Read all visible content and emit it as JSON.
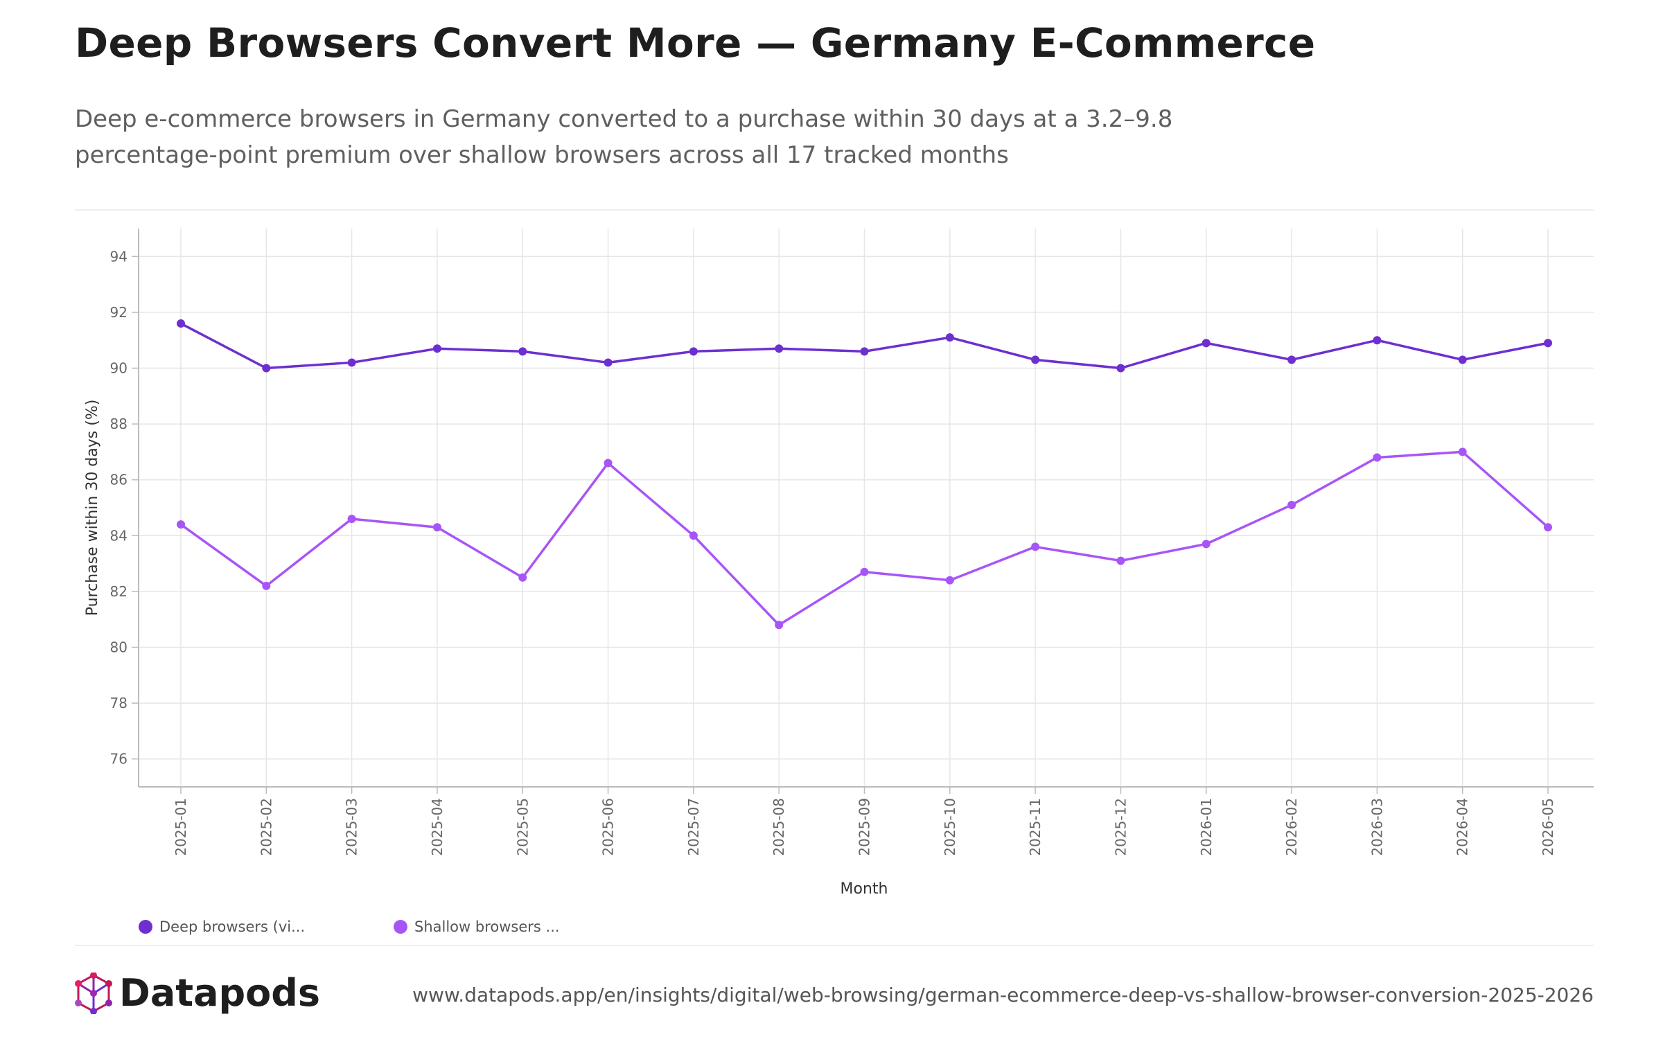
{
  "header": {
    "title": "Deep Browsers Convert More — Germany E-Commerce",
    "subtitle": "Deep e-commerce browsers in Germany converted to a purchase within 30 days at a 3.2–9.8 percentage-point premium over shallow browsers across all 17 tracked months"
  },
  "colors": {
    "deep": "#6d2fd0",
    "shallow": "#a855f7",
    "grid": "#e6e6e6",
    "axis": "#bbbbbb"
  },
  "chart_data": {
    "type": "line",
    "xlabel": "Month",
    "ylabel": "Purchase within 30 days (%)",
    "ylim": [
      75,
      95
    ],
    "yticks": [
      76,
      78,
      80,
      82,
      84,
      86,
      88,
      90,
      92,
      94
    ],
    "grid": true,
    "legend_position": "bottom-left",
    "categories": [
      "2025-01",
      "2025-02",
      "2025-03",
      "2025-04",
      "2025-05",
      "2025-06",
      "2025-07",
      "2025-08",
      "2025-09",
      "2025-10",
      "2025-11",
      "2025-12",
      "2026-01",
      "2026-02",
      "2026-03",
      "2026-04",
      "2026-05"
    ],
    "series": [
      {
        "name": "Deep browsers (vi...",
        "values": [
          91.6,
          90.0,
          90.2,
          90.7,
          90.6,
          90.2,
          90.6,
          90.7,
          90.6,
          91.1,
          90.3,
          90.0,
          90.9,
          90.3,
          91.0,
          90.3,
          90.9
        ]
      },
      {
        "name": "Shallow browsers ...",
        "values": [
          84.4,
          82.2,
          84.6,
          84.3,
          82.5,
          86.6,
          84.0,
          80.8,
          82.7,
          82.4,
          83.6,
          83.1,
          83.7,
          85.1,
          86.8,
          87.0,
          84.3
        ]
      }
    ]
  },
  "legend": {
    "deep_label": "Deep browsers (vi...",
    "shallow_label": "Shallow browsers ..."
  },
  "footer": {
    "logo_text": "Datapods",
    "source_url": "www.datapods.app/en/insights/digital/web-browsing/german-ecommerce-deep-vs-shallow-browser-conversion-2025-2026"
  }
}
